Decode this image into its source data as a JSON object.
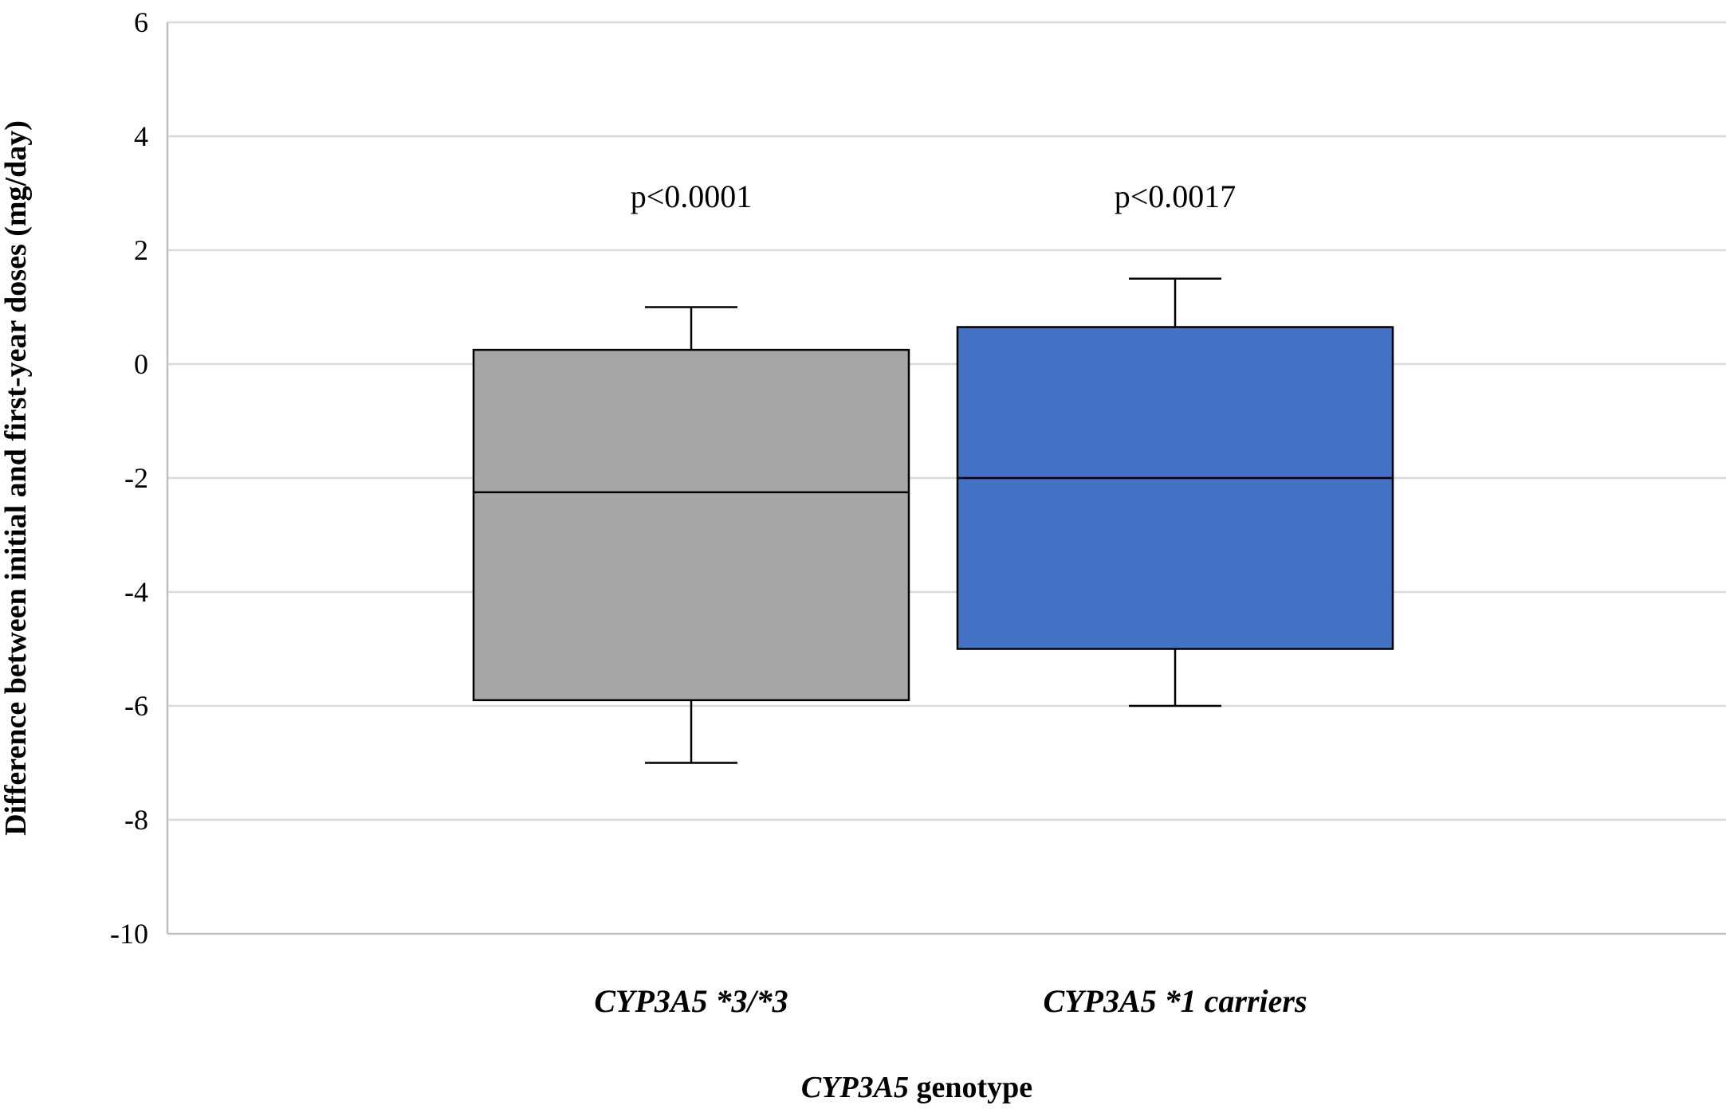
{
  "chart_data": {
    "type": "box",
    "xlabel": {
      "italic": "CYP3A5",
      "rest": " genotype"
    },
    "ylabel": "Difference between initial and first-year doses (mg/day)",
    "ylim": [
      -10,
      6
    ],
    "yticks": [
      6,
      4,
      2,
      0,
      -2,
      -4,
      -6,
      -8,
      -10
    ],
    "ytick_labels": [
      "6",
      "4",
      "2",
      "0",
      "-2",
      "-4",
      "-6",
      "-8",
      "-10"
    ],
    "grid": true,
    "categories": [
      "CYP3A5 *3/*3",
      "CYP3A5 *1 carriers"
    ],
    "boxes": [
      {
        "category": "CYP3A5 *3/*3",
        "min": -7,
        "q1": -5.9,
        "median": -2.25,
        "q3": 0.25,
        "max": 1,
        "color": "#a6a6a6",
        "annotation": "p<0.0001"
      },
      {
        "category": "CYP3A5 *1 carriers",
        "min": -6,
        "q1": -5,
        "median": -2,
        "q3": 0.65,
        "max": 1.5,
        "color": "#4472c4",
        "annotation": "p<0.0017"
      }
    ]
  }
}
